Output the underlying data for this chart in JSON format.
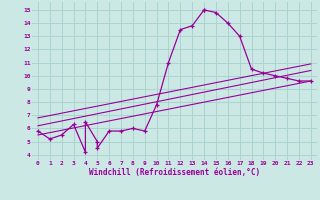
{
  "xlabel": "Windchill (Refroidissement éolien,°C)",
  "bg_color": "#cce8e4",
  "grid_color": "#aad4d0",
  "line_color": "#990099",
  "x_ticks": [
    0,
    1,
    2,
    3,
    4,
    5,
    6,
    7,
    8,
    9,
    10,
    11,
    12,
    13,
    14,
    15,
    16,
    17,
    18,
    19,
    20,
    21,
    22,
    23
  ],
  "y_ticks": [
    4,
    5,
    6,
    7,
    8,
    9,
    10,
    11,
    12,
    13,
    14,
    15
  ],
  "ylim": [
    3.6,
    15.6
  ],
  "xlim": [
    -0.5,
    23.5
  ],
  "series1_x": [
    0,
    1,
    2,
    3,
    4,
    4,
    5,
    5,
    6,
    7,
    8,
    9,
    10,
    11,
    12,
    13,
    14,
    14,
    15,
    16,
    17,
    18,
    19,
    20,
    21,
    22,
    23
  ],
  "series1_y": [
    5.8,
    5.2,
    5.5,
    6.3,
    4.2,
    6.5,
    5.0,
    4.5,
    5.8,
    5.8,
    6.0,
    5.8,
    7.8,
    11.0,
    13.5,
    13.8,
    15.0,
    15.0,
    14.8,
    14.0,
    13.0,
    10.5,
    10.2,
    10.0,
    9.8,
    9.6,
    9.6
  ],
  "series2_x": [
    0,
    23
  ],
  "series2_y": [
    5.5,
    9.6
  ],
  "series3_x": [
    0,
    23
  ],
  "series3_y": [
    6.2,
    10.4
  ],
  "series4_x": [
    0,
    23
  ],
  "series4_y": [
    6.8,
    10.9
  ]
}
